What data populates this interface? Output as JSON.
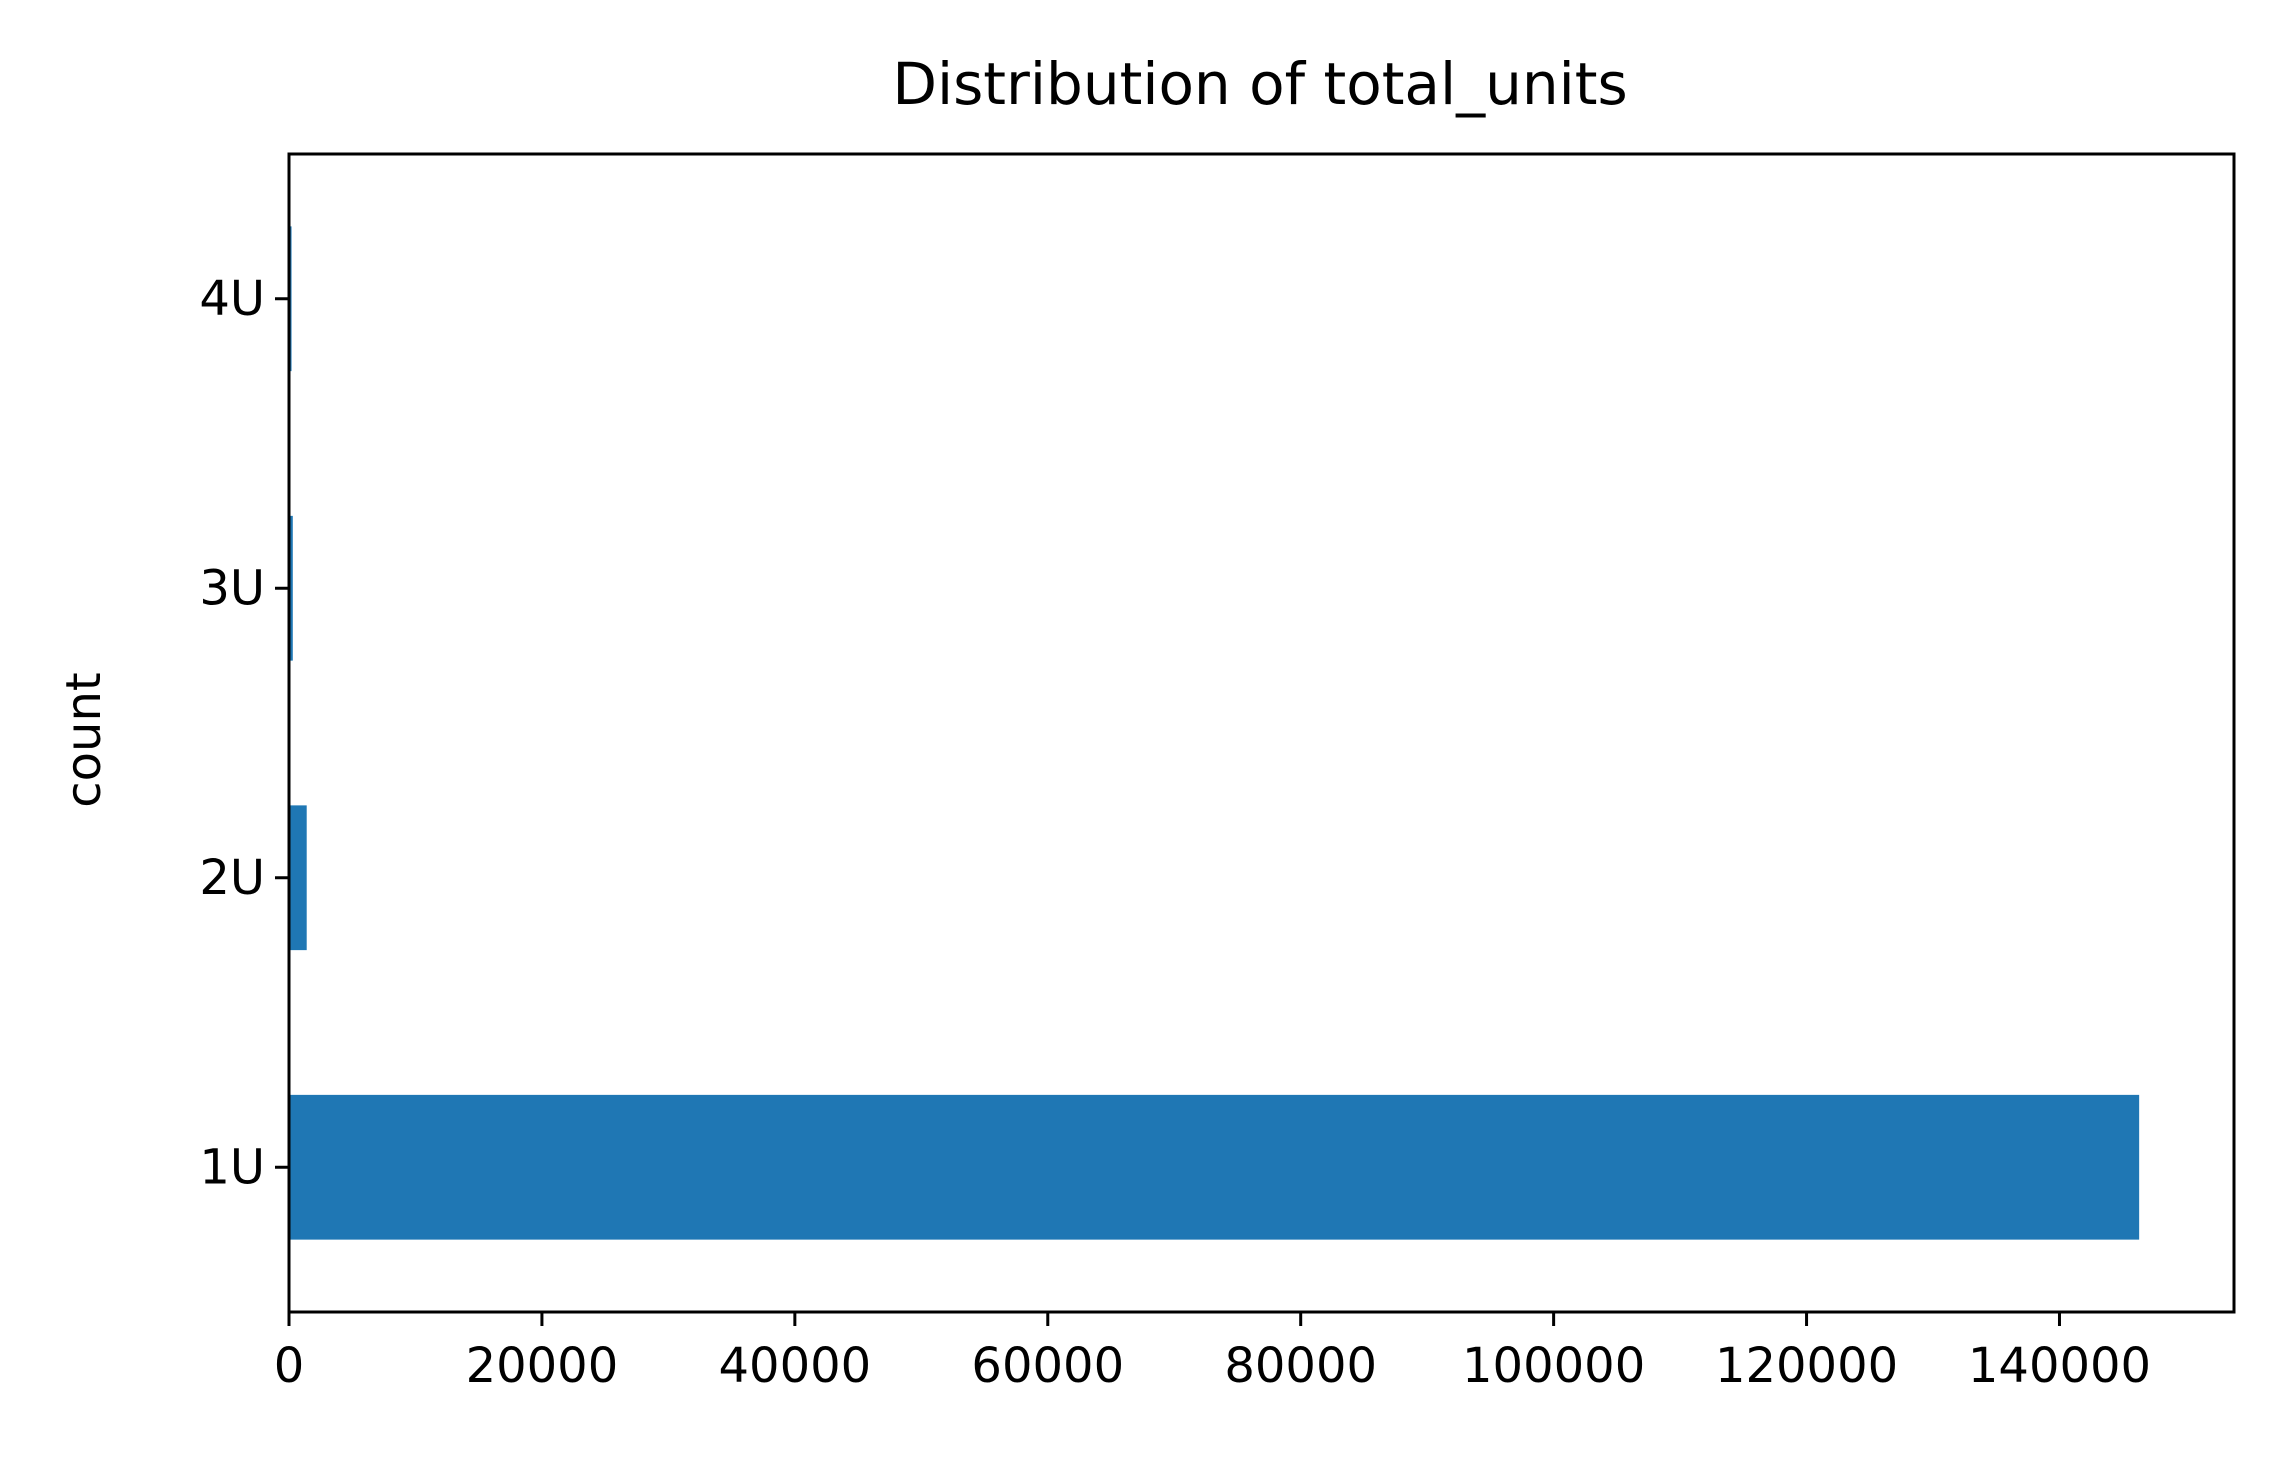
{
  "chart_data": {
    "type": "bar",
    "orientation": "horizontal",
    "title": "Distribution of total_units",
    "xlabel": "",
    "ylabel": "count",
    "categories": [
      "1U",
      "2U",
      "3U",
      "4U"
    ],
    "values": [
      146300,
      1400,
      300,
      200
    ],
    "xlim": [
      0,
      153800
    ],
    "xticks": [
      0,
      20000,
      40000,
      60000,
      80000,
      100000,
      120000,
      140000
    ],
    "xtick_labels": [
      "0",
      "20000",
      "40000",
      "60000",
      "80000",
      "100000",
      "120000",
      "140000"
    ],
    "bar_color": "#1f77b4",
    "grid": false,
    "legend": "none"
  }
}
